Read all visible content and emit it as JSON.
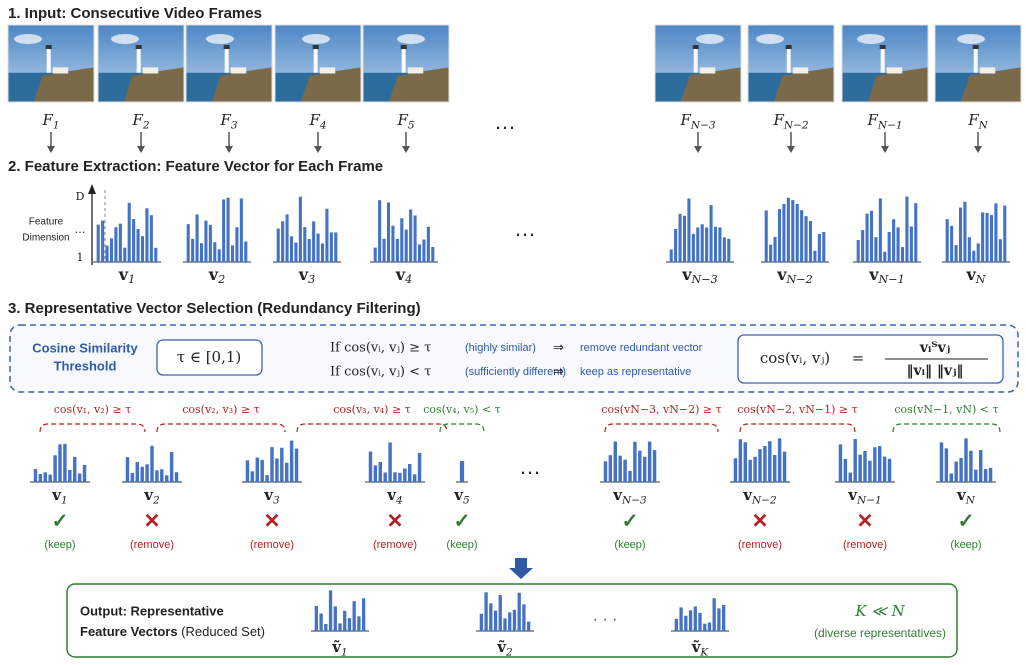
{
  "sections": [
    "1. Input: Consecutive Video Frames",
    "2. Feature Extraction: Feature Vector for Each Frame",
    "3. Representative Vector Selection (Redundancy Filtering)"
  ],
  "frames": {
    "base": "F",
    "subs": [
      "1",
      "2",
      "3",
      "4",
      "5",
      "N−3",
      "N−2",
      "N−1",
      "N"
    ],
    "ellipsis": "…"
  },
  "features": {
    "axis_label": [
      "Feature",
      "Dimension"
    ],
    "axis_ticks": [
      "D",
      "…",
      "1"
    ],
    "base": "v",
    "subs": [
      "1",
      "2",
      "3",
      "4",
      "N−3",
      "N−2",
      "N−1",
      "N"
    ],
    "ellipsis": "…"
  },
  "selection": {
    "threshold_label": [
      "Cosine Similarity",
      "Threshold"
    ],
    "tau": "τ ∈ [0,1)",
    "rules": [
      {
        "cond": "If cos(vᵢ, vⱼ) ≥ τ",
        "note": "(highly similar)",
        "arrow": "⇒",
        "action": "remove redundant vector"
      },
      {
        "cond": "If cos(vᵢ, vⱼ) < τ",
        "note": "(sufficiently different)",
        "arrow": "⇒",
        "action": "keep as representative"
      }
    ],
    "formula": {
      "lhs": "cos(vᵢ, vⱼ)",
      "eq": "=",
      "numerator": "vᵢᵀvⱼ",
      "denominator": "‖vᵢ‖ ‖vⱼ‖"
    },
    "comparisons": [
      {
        "text": "cos(v₁, v₂) ≥ τ",
        "color": "#b22222"
      },
      {
        "text": "cos(v₂, v₃) ≥ τ",
        "color": "#b22222"
      },
      {
        "text": "cos(v₃, v₄) ≥ τ",
        "color": "#b22222"
      },
      {
        "text": "cos(v₄, v₅) < τ",
        "color": "#2e7d32"
      },
      {
        "text": "cos(vN−3, vN−2) ≥ τ",
        "color": "#b22222"
      },
      {
        "text": "cos(vN−2, vN−1) ≥ τ",
        "color": "#b22222"
      },
      {
        "text": "cos(vN−1, vN) < τ",
        "color": "#2e7d32"
      }
    ],
    "base": "v",
    "ellipsis": "…",
    "vectors": [
      {
        "sub": "1",
        "mark": "✓",
        "status": "(keep)",
        "color": "#2e7d32"
      },
      {
        "sub": "2",
        "mark": "✕",
        "status": "(remove)",
        "color": "#b22222"
      },
      {
        "sub": "3",
        "mark": "✕",
        "status": "(remove)",
        "color": "#b22222"
      },
      {
        "sub": "4",
        "mark": "✕",
        "status": "(remove)",
        "color": "#b22222"
      },
      {
        "sub": "5",
        "mark": "✓",
        "status": "(keep)",
        "color": "#2e7d32"
      },
      {
        "sub": "N−3",
        "mark": "✓",
        "status": "(keep)",
        "color": "#2e7d32"
      },
      {
        "sub": "N−2",
        "mark": "✕",
        "status": "(remove)",
        "color": "#b22222"
      },
      {
        "sub": "N−1",
        "mark": "✕",
        "status": "(remove)",
        "color": "#b22222"
      },
      {
        "sub": "N",
        "mark": "✓",
        "status": "(keep)",
        "color": "#2e7d32"
      }
    ]
  },
  "output": {
    "title": "Output: Representative",
    "subtitle_bold": "Feature Vectors",
    "subtitle": "(Reduced Set)",
    "base": "ṽ",
    "subs": [
      "1",
      "2",
      "K"
    ],
    "ellipsis": "· · ·",
    "relation": "K ≪ N",
    "note": "(diverse representatives)"
  }
}
